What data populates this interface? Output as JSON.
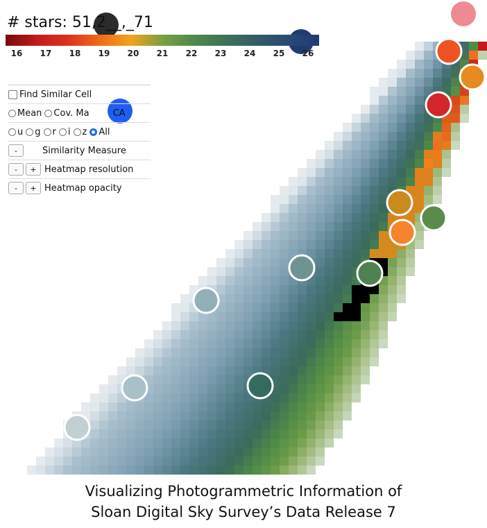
{
  "title_prefix": "# stars: ",
  "stars_value": "51,2__,_71",
  "colorbar": {
    "ticks": [
      "16",
      "17",
      "18",
      "19",
      "20",
      "21",
      "22",
      "23",
      "24",
      "25",
      "26"
    ],
    "stops": [
      "#7a0a10",
      "#c01c1c",
      "#e0301c",
      "#f06a18",
      "#f3a21e",
      "#7aa040",
      "#4f8a4c",
      "#3f7258",
      "#325c66",
      "#2a4a72",
      "#1f3a78"
    ]
  },
  "controls": {
    "find_similar": "Find Similar Cell",
    "mean": "Mean",
    "cov": "Cov. Ma",
    "pca": "CA",
    "bands": [
      "u",
      "g",
      "r",
      "i",
      "z",
      "All"
    ],
    "similarity": "Similarity Measure",
    "resolution": "Heatmap resolution",
    "opacity": "Heatmap opacity",
    "minus": "-",
    "plus": "+"
  },
  "caption": {
    "line1": "Visualizing Photogrammetric Information of",
    "line2": "Sloan Digital Sky Survey’s Data Release 7"
  },
  "chart_data": {
    "type": "heatmap",
    "title": "",
    "xlabel": "",
    "ylabel": "",
    "colorbar_range": [
      16,
      26
    ],
    "colorbar_ticks": [
      16,
      17,
      18,
      19,
      20,
      21,
      22,
      23,
      24,
      25,
      26
    ]
  }
}
